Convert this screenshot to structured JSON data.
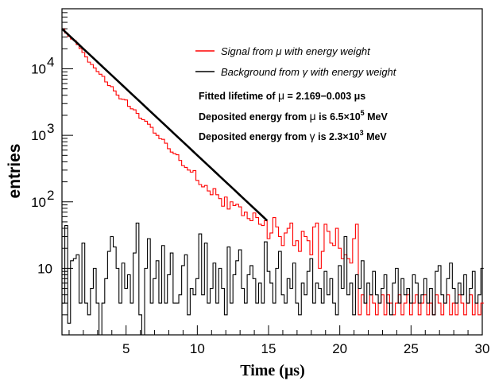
{
  "chart_data": {
    "type": "line",
    "title": "",
    "xlabel": "Time (μs)",
    "ylabel": "entries",
    "xlim": [
      0.5,
      30
    ],
    "ylim": [
      1,
      80000
    ],
    "yscale": "log",
    "grid": false,
    "legend_position": "top-right",
    "x_ticks": [
      5,
      10,
      15,
      20,
      25,
      30
    ],
    "x_tick_labels": [
      "5",
      "10",
      "15",
      "20",
      "25",
      "30"
    ],
    "y_ticks": [
      10,
      100,
      1000,
      10000
    ],
    "y_tick_mantissa": [
      "10",
      "10",
      "10",
      "10"
    ],
    "y_tick_exponents": [
      "",
      "2",
      "3",
      "4"
    ],
    "bin_width": 0.2,
    "bin_start": 0.5,
    "series": [
      {
        "name": "Signal from μ with energy weight",
        "color": "#ff0000",
        "values": [
          40000,
          34500,
          30800,
          28000,
          26600,
          23100,
          20200,
          17600,
          15100,
          12600,
          11600,
          10300,
          9100,
          8300,
          7700,
          6350,
          5600,
          5400,
          4650,
          4030,
          3530,
          3470,
          3400,
          2730,
          2500,
          2420,
          2140,
          1810,
          1720,
          1630,
          1470,
          1320,
          1080,
          1000,
          890,
          870,
          760,
          630,
          560,
          530,
          510,
          420,
          350,
          330,
          300,
          280,
          295,
          210,
          182,
          168,
          176,
          146,
          128,
          158,
          128,
          112,
          86,
          118,
          78,
          100,
          88,
          92,
          84,
          62,
          70,
          56,
          52,
          68,
          58,
          46,
          44,
          52,
          28,
          34,
          58,
          42,
          30,
          22,
          34,
          40,
          48,
          22,
          26,
          18,
          36,
          30,
          26,
          16,
          42,
          48,
          10,
          18,
          46,
          36,
          24,
          22,
          40,
          20,
          14,
          16,
          14,
          12,
          28,
          46,
          2,
          4,
          3,
          2,
          4,
          3,
          2,
          3,
          4,
          2,
          4,
          3,
          2,
          3,
          4,
          2,
          3,
          4,
          2,
          3,
          4,
          2,
          3,
          4,
          2,
          3,
          2,
          4,
          3,
          2,
          3,
          4,
          2,
          3,
          2,
          4,
          3,
          2,
          3,
          4,
          2,
          3,
          2,
          3
        ]
      },
      {
        "name": "Background from γ with energy weight",
        "color": "#000000",
        "values": [
          3,
          44,
          1.5,
          13,
          14,
          16,
          3,
          24,
          3,
          2,
          5,
          10,
          3,
          1,
          3,
          7,
          18,
          30,
          21,
          10,
          3,
          12,
          5,
          8,
          3,
          17,
          48,
          2,
          1,
          10,
          28,
          3,
          7,
          13,
          3,
          22,
          3,
          8,
          17,
          3,
          3,
          4,
          11,
          16,
          2,
          5,
          4,
          7,
          33,
          4,
          24,
          3,
          5,
          12,
          3,
          10,
          5,
          2,
          21,
          3,
          8,
          13,
          19,
          5,
          3,
          8,
          11,
          7,
          3,
          6,
          3,
          25,
          9,
          6,
          3,
          10,
          18,
          4,
          3,
          7,
          5,
          12,
          3,
          2,
          6,
          4,
          9,
          14,
          3,
          6,
          5,
          3,
          9,
          4,
          7,
          3,
          2,
          11,
          5,
          30,
          4,
          6,
          2,
          8,
          5,
          13,
          3,
          6,
          4,
          9,
          4,
          3,
          5,
          8,
          3,
          2,
          6,
          10,
          3,
          7,
          4,
          5,
          3,
          8,
          6,
          3,
          4,
          7,
          3,
          5,
          2,
          9,
          11,
          4,
          3,
          7,
          12,
          5,
          3,
          6,
          4,
          8,
          3,
          5,
          9,
          3,
          4,
          10
        ]
      },
      {
        "name": "Fit",
        "color": "#000000",
        "type": "exp_fit",
        "x_range": [
          0.5,
          14.9
        ],
        "y_start": 40000,
        "lifetime": 2.169
      }
    ],
    "annotations": [
      "Fitted lifetime of μ = 2.169−0.003 μs",
      "Deposited energy from μ is 6.5×10⁵ MeV",
      "Deposited energy from γ is 2.3×10³ MeV"
    ]
  },
  "legend": {
    "signal_label": "Signal from μ with energy weight",
    "background_label": "Background from γ with energy weight"
  },
  "annotations": {
    "lifetime_prefix": "Fitted lifetime of ",
    "lifetime_mu": "μ",
    "lifetime_value": " = 2.169−0.003 μs",
    "mu_energy_prefix": "Deposited energy from ",
    "mu_symbol": "μ",
    "mu_energy_mid": " is 6.5×10",
    "mu_energy_exp": "5",
    "mu_energy_unit": " MeV",
    "gamma_energy_prefix": "Deposited energy from ",
    "gamma_symbol": "γ",
    "gamma_energy_mid": " is 2.3×10",
    "gamma_energy_exp": "3",
    "gamma_energy_unit": " MeV"
  },
  "axes": {
    "xlabel": "Time (μs)",
    "ylabel": "entries"
  },
  "colors": {
    "signal": "#ff0000",
    "background": "#000000",
    "frame": "#000000"
  }
}
